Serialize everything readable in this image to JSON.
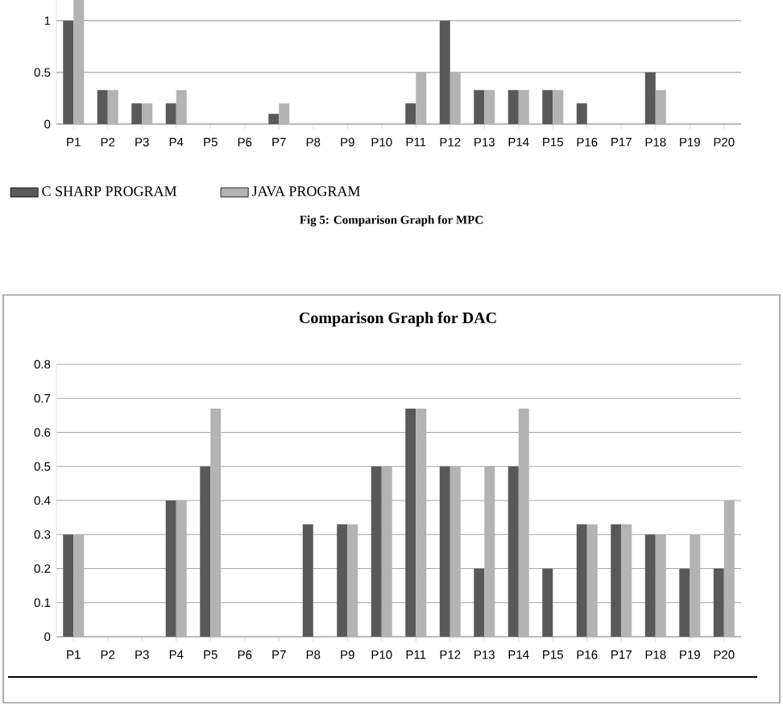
{
  "chart_data": [
    {
      "type": "bar",
      "categories": [
        "P1",
        "P2",
        "P3",
        "P4",
        "P5",
        "P6",
        "P7",
        "P8",
        "P9",
        "P10",
        "P11",
        "P12",
        "P13",
        "P14",
        "P15",
        "P16",
        "P17",
        "P18",
        "P19",
        "P20"
      ],
      "series": [
        {
          "name": "C SHARP PROGRAM",
          "color": "#595959",
          "values": [
            1,
            0.33,
            0.2,
            0.2,
            0,
            0,
            0.1,
            0,
            0,
            0,
            0.2,
            1,
            0.33,
            0.33,
            0.33,
            0.2,
            0,
            0.5,
            0,
            0
          ]
        },
        {
          "name": "JAVA PROGRAM",
          "color": "#b3b3b3",
          "values": [
            1.2,
            0.33,
            0.2,
            0.33,
            0,
            0,
            0.2,
            0,
            0,
            0,
            0.5,
            0.5,
            0.33,
            0.33,
            0.33,
            0,
            0,
            0.33,
            0,
            0
          ]
        }
      ],
      "ylim": [
        0,
        1.2
      ],
      "yticks": [
        0,
        0.5,
        1
      ],
      "grid": "y",
      "legend": "bottom",
      "annotations": [
        "Fig 5: Comparison Graph for MPC"
      ]
    },
    {
      "type": "bar",
      "title": "Comparison Graph for DAC",
      "categories": [
        "P1",
        "P2",
        "P3",
        "P4",
        "P5",
        "P6",
        "P7",
        "P8",
        "P9",
        "P10",
        "P11",
        "P12",
        "P13",
        "P14",
        "P15",
        "P16",
        "P17",
        "P18",
        "P19",
        "P20"
      ],
      "series": [
        {
          "color": "#595959",
          "values": [
            0.3,
            0,
            0,
            0.4,
            0.5,
            0,
            0,
            0.33,
            0.33,
            0.5,
            0.67,
            0.5,
            0.2,
            0.5,
            0.2,
            0.33,
            0.33,
            0.3,
            0.2,
            0.2
          ]
        },
        {
          "color": "#b3b3b3",
          "values": [
            0.3,
            0,
            0,
            0.4,
            0.67,
            0,
            0,
            0,
            0.33,
            0.5,
            0.67,
            0.5,
            0.5,
            0.67,
            0,
            0.33,
            0.33,
            0.3,
            0.3,
            0.4
          ]
        }
      ],
      "ylim": [
        0,
        0.8
      ],
      "yticks": [
        0,
        0.1,
        0.2,
        0.3,
        0.4,
        0.5,
        0.6,
        0.7,
        0.8
      ],
      "grid": "y"
    }
  ]
}
